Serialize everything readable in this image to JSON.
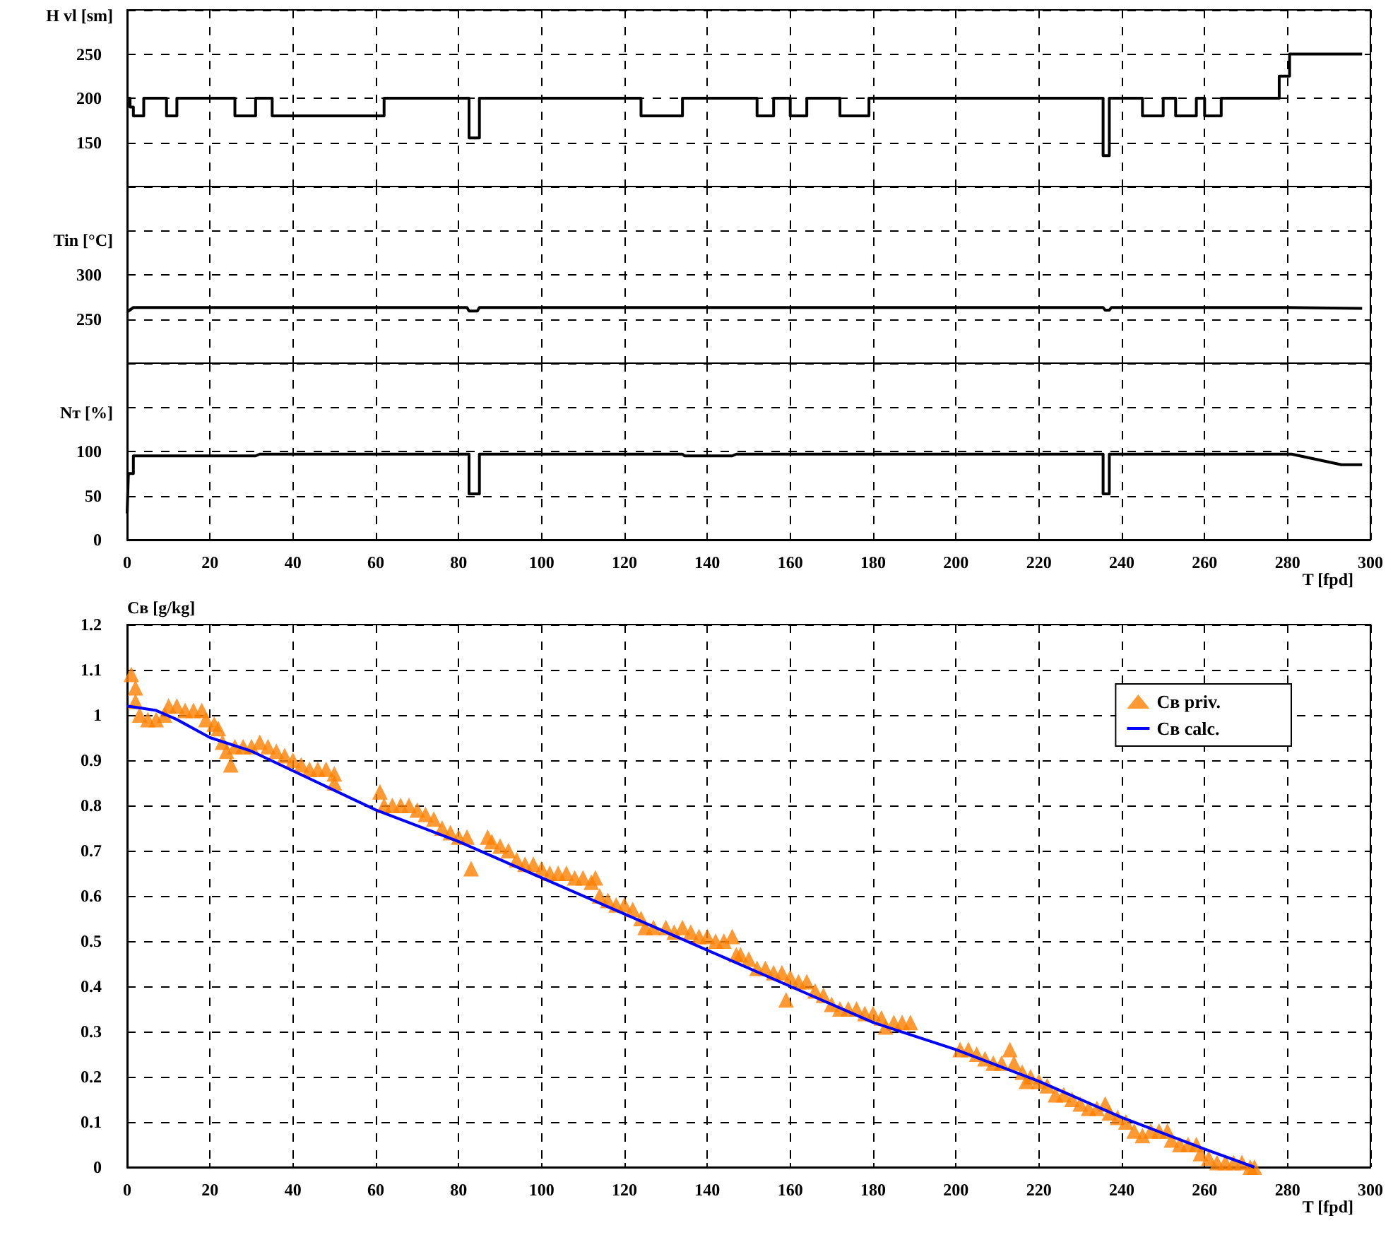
{
  "chart_data": [
    {
      "type": "step",
      "ylabel": "H vl [sm]",
      "xlim": [
        0,
        300
      ],
      "xticks": [
        0,
        20,
        40,
        60,
        80,
        100,
        120,
        140,
        160,
        180,
        200,
        220,
        240,
        260,
        280,
        300
      ],
      "ylim": [
        100,
        300
      ],
      "yticks": [
        {
          "value": 100,
          "label": null
        },
        150,
        200,
        250,
        {
          "value": 300,
          "label": null
        }
      ],
      "grid": true,
      "tick_labels": "y",
      "marker": "none",
      "series": [
        {
          "color": "#000000",
          "x": [
            0,
            0.7,
            1.5,
            4,
            9.5,
            12,
            26,
            31,
            35,
            62,
            82.5,
            85,
            124,
            134,
            152,
            156,
            160,
            164,
            172,
            179,
            235.5,
            237,
            245,
            250,
            253,
            258,
            260,
            264,
            278,
            280.5,
            298
          ],
          "values": [
            200,
            190,
            180,
            200,
            180,
            200,
            180,
            200,
            180,
            200,
            155,
            200,
            180,
            200,
            180,
            200,
            180,
            200,
            180,
            200,
            135,
            200,
            180,
            200,
            180,
            200,
            180,
            200,
            225,
            250,
            250
          ]
        }
      ]
    },
    {
      "type": "line",
      "ylabel": "Tin [°C]",
      "xlim": [
        0,
        300
      ],
      "xticks": [
        0,
        20,
        40,
        60,
        80,
        100,
        120,
        140,
        160,
        180,
        200,
        220,
        240,
        260,
        280,
        300
      ],
      "ylim": [
        200,
        400
      ],
      "yticks": [
        {
          "value": 200,
          "label": null
        },
        250,
        300,
        {
          "value": 350,
          "label": null
        },
        {
          "value": 400,
          "label": null
        }
      ],
      "grid": true,
      "tick_labels": "y",
      "marker": "none",
      "series": [
        {
          "color": "#000000",
          "x": [
            0,
            1.5,
            82,
            82.5,
            84.5,
            85,
            235.5,
            236,
            237,
            237.5,
            280,
            298
          ],
          "values": [
            258,
            263,
            263,
            259,
            259,
            263,
            263,
            260,
            260,
            263,
            263,
            262
          ]
        }
      ]
    },
    {
      "type": "line",
      "ylabel": "Nт [%]",
      "xlabel": "T [fpd]",
      "xlim": [
        0,
        300
      ],
      "xticks": [
        0,
        20,
        40,
        60,
        80,
        100,
        120,
        140,
        160,
        180,
        200,
        220,
        240,
        260,
        280,
        300
      ],
      "ylim": [
        0,
        200
      ],
      "yticks": [
        0,
        50,
        100,
        {
          "value": 150,
          "label": null
        },
        {
          "value": 200,
          "label": null
        }
      ],
      "grid": true,
      "marker": "none",
      "series": [
        {
          "color": "#000000",
          "x": [
            0,
            0.3,
            1.5,
            1.5,
            31,
            32,
            82.5,
            82.5,
            85,
            85,
            134,
            134.5,
            146,
            147,
            235.5,
            235.5,
            237,
            237,
            281,
            293,
            298
          ],
          "values": [
            30,
            75,
            75,
            95,
            95,
            97,
            97,
            52,
            52,
            97,
            97,
            95,
            95,
            97,
            97,
            52,
            52,
            97,
            97,
            85,
            85
          ]
        }
      ]
    },
    {
      "type": "scatter",
      "ylabel": "Cв [g/kg]",
      "xlabel": "T [fpd]",
      "xlim": [
        0,
        300
      ],
      "xticks": [
        0,
        20,
        40,
        60,
        80,
        100,
        120,
        140,
        160,
        180,
        200,
        220,
        240,
        260,
        280,
        300
      ],
      "ylim": [
        0,
        1.2
      ],
      "yticks": [
        0,
        0.1,
        0.2,
        0.3,
        0.4,
        0.5,
        0.6,
        0.7,
        0.8,
        0.9,
        1,
        1.1,
        1.2
      ],
      "grid": true,
      "legend": "top right",
      "series": [
        {
          "name": "Cв priv.",
          "marker": "triangle",
          "color": "#ff8000",
          "x": [
            1,
            2,
            2,
            3,
            5,
            7,
            9,
            10,
            12,
            14,
            16,
            18,
            19,
            21,
            22,
            23,
            24,
            25,
            26,
            28,
            30,
            32,
            34,
            36,
            38,
            40,
            42,
            44,
            46,
            48,
            50,
            50,
            61,
            62,
            64,
            66,
            68,
            70,
            72,
            74,
            76,
            78,
            80,
            82,
            83,
            87,
            88,
            90,
            92,
            94,
            96,
            98,
            100,
            102,
            104,
            106,
            108,
            110,
            112,
            113,
            114,
            116,
            118,
            120,
            122,
            124,
            125,
            127,
            130,
            132,
            134,
            136,
            138,
            140,
            142,
            144,
            146,
            147,
            148,
            150,
            152,
            154,
            156,
            158,
            159,
            160,
            162,
            164,
            166,
            168,
            170,
            172,
            174,
            176,
            178,
            180,
            182,
            183,
            185,
            187,
            189,
            201,
            203,
            205,
            207,
            209,
            211,
            213,
            214,
            216,
            217,
            218,
            220,
            222,
            224,
            226,
            228,
            230,
            232,
            234,
            236,
            237,
            239,
            241,
            243,
            245,
            247,
            249,
            251,
            252,
            254,
            256,
            258,
            259,
            261,
            263,
            265,
            267,
            269,
            271,
            272
          ],
          "values": [
            1.09,
            1.06,
            1.03,
            1.0,
            0.99,
            0.99,
            1.0,
            1.02,
            1.02,
            1.01,
            1.01,
            1.01,
            0.99,
            0.98,
            0.97,
            0.94,
            0.92,
            0.89,
            0.93,
            0.93,
            0.93,
            0.94,
            0.93,
            0.92,
            0.91,
            0.9,
            0.89,
            0.88,
            0.88,
            0.88,
            0.87,
            0.85,
            0.83,
            0.8,
            0.8,
            0.8,
            0.8,
            0.79,
            0.78,
            0.77,
            0.75,
            0.74,
            0.73,
            0.73,
            0.66,
            0.73,
            0.72,
            0.71,
            0.7,
            0.68,
            0.67,
            0.67,
            0.66,
            0.65,
            0.65,
            0.65,
            0.64,
            0.64,
            0.63,
            0.64,
            0.6,
            0.59,
            0.58,
            0.58,
            0.57,
            0.55,
            0.53,
            0.53,
            0.53,
            0.52,
            0.53,
            0.52,
            0.51,
            0.51,
            0.5,
            0.5,
            0.51,
            0.47,
            0.47,
            0.46,
            0.44,
            0.44,
            0.43,
            0.43,
            0.37,
            0.42,
            0.41,
            0.41,
            0.39,
            0.38,
            0.36,
            0.35,
            0.35,
            0.35,
            0.34,
            0.34,
            0.33,
            0.31,
            0.32,
            0.32,
            0.32,
            0.26,
            0.26,
            0.25,
            0.24,
            0.23,
            0.23,
            0.26,
            0.23,
            0.21,
            0.19,
            0.2,
            0.19,
            0.18,
            0.16,
            0.16,
            0.15,
            0.14,
            0.13,
            0.13,
            0.14,
            0.12,
            0.11,
            0.1,
            0.08,
            0.07,
            0.08,
            0.08,
            0.08,
            0.06,
            0.05,
            0.05,
            0.05,
            0.03,
            0.02,
            0.01,
            0.01,
            0.01,
            0.01,
            0,
            0
          ]
        },
        {
          "name": "Cв calc.",
          "type": "line",
          "marker": "none",
          "color": "#0000ff",
          "x": [
            0,
            7,
            12,
            20,
            30,
            60,
            80,
            100,
            120,
            140,
            160,
            180,
            200,
            220,
            240,
            260,
            272
          ],
          "values": [
            1.02,
            1.01,
            0.99,
            0.95,
            0.92,
            0.79,
            0.72,
            0.64,
            0.56,
            0.48,
            0.4,
            0.32,
            0.26,
            0.19,
            0.11,
            0.04,
            0
          ]
        }
      ]
    }
  ]
}
